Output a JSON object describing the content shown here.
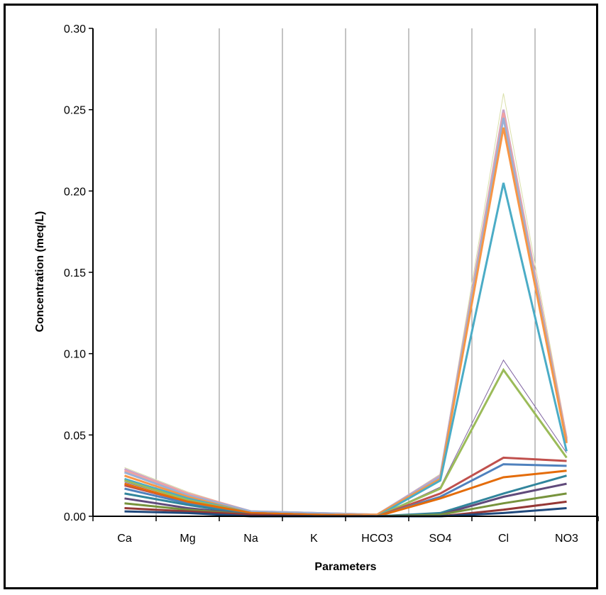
{
  "chart_data": {
    "type": "line",
    "title": "",
    "xlabel": "Parameters",
    "ylabel": "Concentration (meq/L)",
    "categories": [
      "Ca",
      "Mg",
      "Na",
      "K",
      "HCO3",
      "SO4",
      "Cl",
      "NO3"
    ],
    "ylim": [
      0,
      0.3
    ],
    "yticks": [
      "0.00",
      "0.05",
      "0.10",
      "0.15",
      "0.20",
      "0.25",
      "0.30"
    ],
    "grid": "vertical",
    "legend": "none",
    "series": [
      {
        "color": "#d9dfa8",
        "width": 1,
        "values": [
          0.03,
          0.015,
          0.003,
          0.002,
          0.001,
          0.026,
          0.26,
          0.05
        ]
      },
      {
        "color": "#c9a3c8",
        "width": 3,
        "values": [
          0.029,
          0.014,
          0.003,
          0.002,
          0.001,
          0.025,
          0.25,
          0.047
        ]
      },
      {
        "color": "#f2a2a0",
        "width": 3,
        "values": [
          0.028,
          0.014,
          0.003,
          0.002,
          0.001,
          0.024,
          0.248,
          0.048
        ]
      },
      {
        "color": "#9ab0d6",
        "width": 3,
        "values": [
          0.027,
          0.013,
          0.003,
          0.002,
          0.001,
          0.024,
          0.245,
          0.046
        ]
      },
      {
        "color": "#f79646",
        "width": 3,
        "values": [
          0.025,
          0.012,
          0.002,
          0.001,
          0.001,
          0.023,
          0.239,
          0.045
        ]
      },
      {
        "color": "#4bacc6",
        "width": 3,
        "values": [
          0.023,
          0.011,
          0.002,
          0.001,
          0.0,
          0.022,
          0.205,
          0.04
        ]
      },
      {
        "color": "#8064a2",
        "width": 1,
        "values": [
          0.021,
          0.01,
          0.002,
          0.001,
          0.0,
          0.018,
          0.096,
          0.039
        ]
      },
      {
        "color": "#9bbb59",
        "width": 3,
        "values": [
          0.022,
          0.01,
          0.002,
          0.001,
          0.0,
          0.017,
          0.09,
          0.036
        ]
      },
      {
        "color": "#c0504d",
        "width": 3,
        "values": [
          0.019,
          0.009,
          0.002,
          0.001,
          0.0,
          0.014,
          0.036,
          0.034
        ]
      },
      {
        "color": "#4f81bd",
        "width": 3,
        "values": [
          0.017,
          0.008,
          0.002,
          0.001,
          0.0,
          0.012,
          0.032,
          0.031
        ]
      },
      {
        "color": "#e46c0a",
        "width": 3,
        "values": [
          0.02,
          0.009,
          0.002,
          0.001,
          0.0,
          0.011,
          0.024,
          0.028
        ]
      },
      {
        "color": "#31859c",
        "width": 3,
        "values": [
          0.014,
          0.007,
          0.001,
          0.0,
          0.0,
          0.002,
          0.014,
          0.025
        ]
      },
      {
        "color": "#604a7b",
        "width": 3,
        "values": [
          0.011,
          0.005,
          0.001,
          0.0,
          0.0,
          0.001,
          0.012,
          0.02
        ]
      },
      {
        "color": "#77933c",
        "width": 3,
        "values": [
          0.008,
          0.004,
          0.001,
          0.0,
          0.0,
          0.001,
          0.008,
          0.014
        ]
      },
      {
        "color": "#953735",
        "width": 3,
        "values": [
          0.005,
          0.003,
          0.001,
          0.0,
          0.0,
          0.0,
          0.004,
          0.009
        ]
      },
      {
        "color": "#1f497d",
        "width": 3,
        "values": [
          0.003,
          0.002,
          0.0,
          0.0,
          0.0,
          0.0,
          0.002,
          0.005
        ]
      }
    ]
  }
}
